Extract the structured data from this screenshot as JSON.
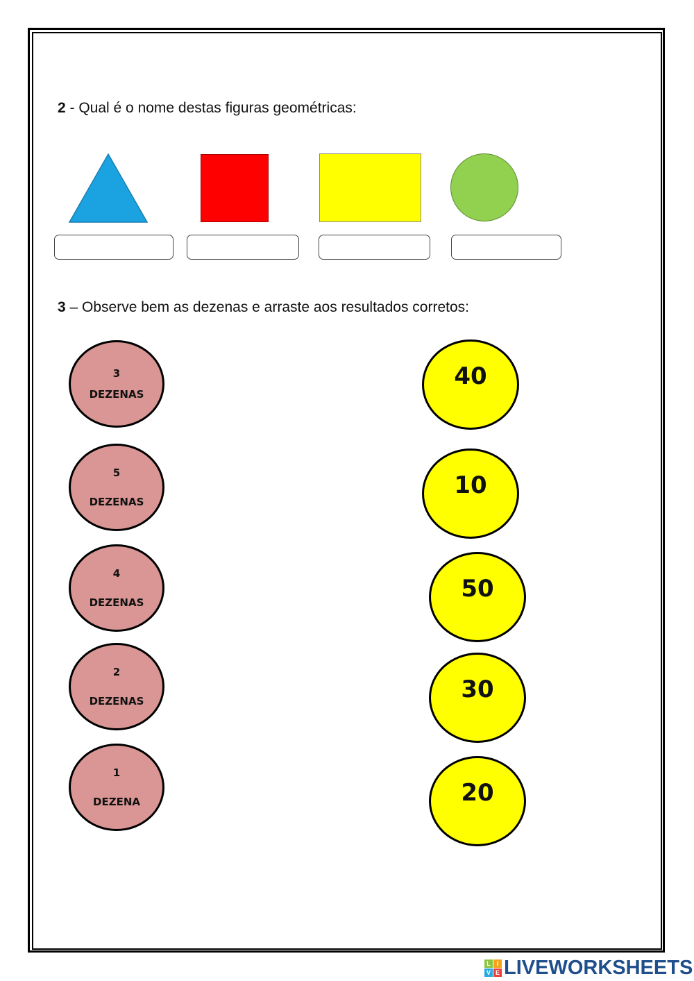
{
  "question2": {
    "number": "2",
    "text": " - Qual é o nome destas figuras geométricas:"
  },
  "shapes": [
    {
      "name": "triangle",
      "color": "#1aa3e0"
    },
    {
      "name": "square",
      "color": "#ff0000"
    },
    {
      "name": "rectangle",
      "color": "#ffff00"
    },
    {
      "name": "circle",
      "color": "#92d050"
    }
  ],
  "question3": {
    "number": "3",
    "text": " – Observe bem as dezenas e arraste aos resultados corretos:"
  },
  "tens": [
    {
      "n": "3",
      "label": "DEZENAS"
    },
    {
      "n": "5",
      "label": "DEZENAS"
    },
    {
      "n": "4",
      "label": "DEZENAS"
    },
    {
      "n": "2",
      "label": "DEZENAS"
    },
    {
      "n": "1",
      "label": "DEZENA"
    }
  ],
  "results": [
    "40",
    "10",
    "50",
    "30",
    "20"
  ],
  "colors": {
    "tens": "#d99694",
    "results": "#ffff00"
  },
  "logo": {
    "icon_letters": [
      "L",
      "I",
      "V",
      "E"
    ],
    "text": "LIVEWORKSHEETS"
  }
}
